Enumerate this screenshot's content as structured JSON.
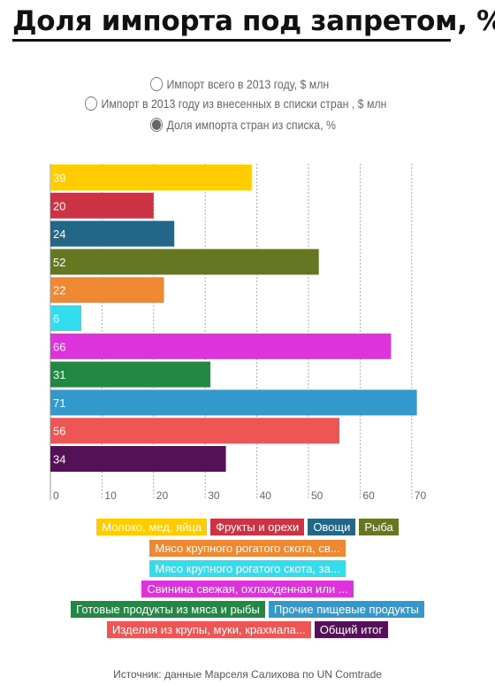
{
  "title": "Доля импорта под запретом, %",
  "controls": {
    "options": [
      {
        "label": "Импорт всего в 2013 году, $ млн",
        "selected": false
      },
      {
        "label": "Импорт в 2013 году из внесенных в списки стран , $ млн",
        "selected": false
      },
      {
        "label": "Доля импорта стран из списка, %",
        "selected": true
      }
    ]
  },
  "chart_data": {
    "type": "bar",
    "orientation": "horizontal",
    "title": "Доля импорта под запретом, %",
    "xlim": [
      0,
      70
    ],
    "xticks": [
      "0",
      "10",
      "20",
      "30",
      "40",
      "50",
      "60",
      "70"
    ],
    "grid": true,
    "legend_position": "bottom",
    "categories": [
      "Молоко, мед, яйца",
      "Фрукты и орехи",
      "Овощи",
      "Рыба",
      "Мясо крупного рогатого скота, св...",
      "Мясо крупного рогатого скота, за...",
      "Свинина свежая, охлажденная или ...",
      "Готовые продукты из мяса и рыбы",
      "Прочие пищевые продукты",
      "Изделия из крупы, муки, крахмала...",
      "Общий итог"
    ],
    "values": [
      39,
      20,
      24,
      52,
      22,
      6,
      66,
      31,
      71,
      56,
      34
    ],
    "colors": [
      "#ffcc00",
      "#cc3344",
      "#226688",
      "#667722",
      "#ee8833",
      "#33ddee",
      "#dd33dd",
      "#228844",
      "#3399cc",
      "#ee5555",
      "#551155"
    ]
  },
  "source": "Источник: данные Марселя Салихова по UN Comtrade"
}
